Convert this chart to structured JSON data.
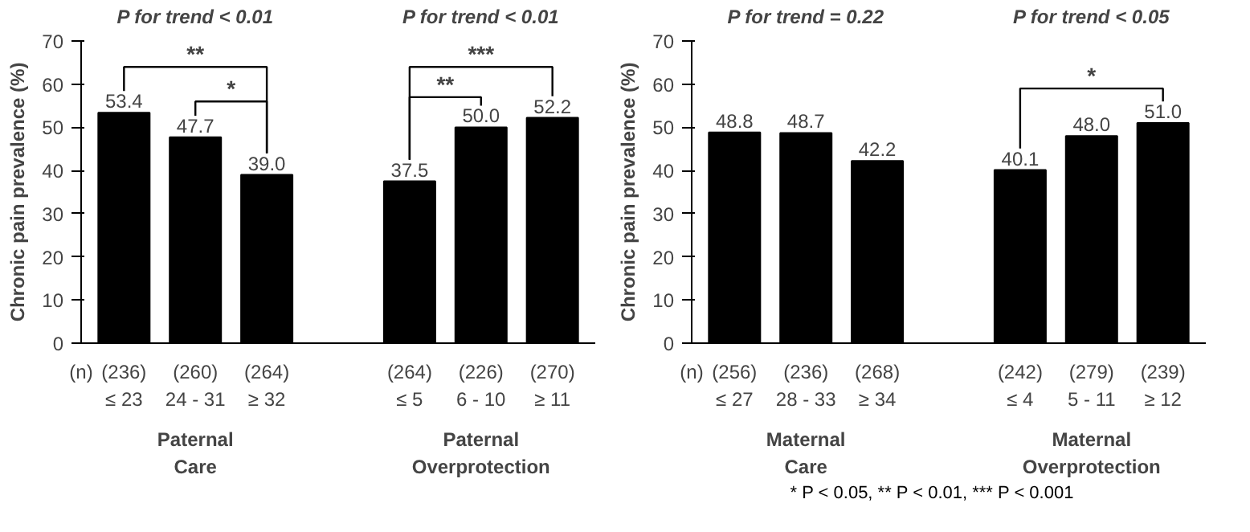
{
  "chart_data": [
    {
      "type": "bar",
      "ylabel": "Chronic pain prevalence (%)",
      "categories": [
        "(236)\n≤ 23",
        "(260)\n24 - 31",
        "(264)\n≥ 32",
        null,
        "(264)\n≤ 5",
        "(226)\n6 - 10",
        "(270)\n≥ 11"
      ],
      "values": [
        53.4,
        47.7,
        39.0,
        null,
        37.5,
        50.0,
        52.2
      ],
      "value_labels": [
        "53.4",
        "47.7",
        "39.0",
        null,
        "37.5",
        "50.0",
        "52.2"
      ],
      "color": "#000000",
      "ylim": [
        0,
        70
      ],
      "yticks": [
        0,
        10,
        20,
        30,
        40,
        50,
        60,
        70
      ],
      "grid": false,
      "annotations": [
        "P for trend < 0.01",
        "P for trend < 0.01",
        "**",
        "*",
        "**",
        "***",
        "(n)",
        "Paternal\nCare",
        "Paternal\nOverprotection"
      ]
    },
    {
      "type": "bar",
      "ylabel": "Chronic pain prevalence (%)",
      "categories": [
        "(256)\n≤ 27",
        "(236)\n28 - 33",
        "(268)\n≥ 34",
        null,
        "(242)\n≤ 4",
        "(279)\n5 - 11",
        "(239)\n≥ 12"
      ],
      "values": [
        48.8,
        48.7,
        42.2,
        null,
        40.1,
        48.0,
        51.0
      ],
      "value_labels": [
        "48.8",
        "48.7",
        "42.2",
        null,
        "40.1",
        "48.0",
        "51.0"
      ],
      "color": "#000000",
      "ylim": [
        0,
        70
      ],
      "yticks": [
        0,
        10,
        20,
        30,
        40,
        50,
        60,
        70
      ],
      "grid": false,
      "annotations": [
        "P for trend = 0.22",
        "P for trend < 0.05",
        "*",
        "(n)",
        "Maternal\nCare",
        "Maternal\nOverprotection",
        "* P < 0.05,  ** P < 0.01,  *** P < 0.001"
      ]
    }
  ]
}
